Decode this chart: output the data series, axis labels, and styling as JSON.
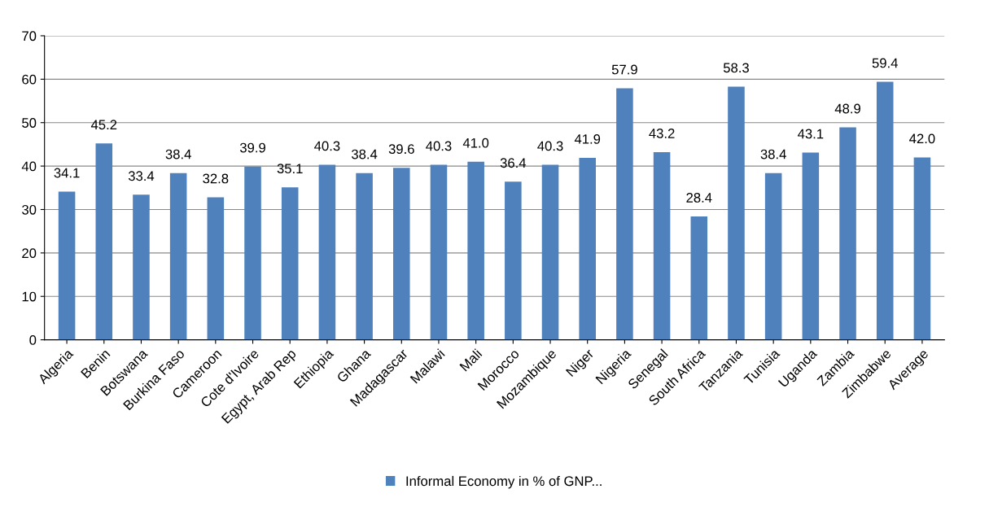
{
  "chart_data": {
    "type": "bar",
    "categories": [
      "Algeria",
      "Benin",
      "Botswana",
      "Burkina Faso",
      "Cameroon",
      "Cote d'Ivoire",
      "Egypt, Arab Rep",
      "Ethiopia",
      "Ghana",
      "Madagascar",
      "Malawi",
      "Mali",
      "Morocco",
      "Mozambique",
      "Niger",
      "Nigeria",
      "Senegal",
      "South Africa",
      "Tanzania",
      "Tunisia",
      "Uganda",
      "Zambia",
      "Zimbabwe",
      "Average"
    ],
    "series": [
      {
        "name": "Informal Economy in % of GNP...",
        "color": "#4f81bd",
        "values": [
          34.1,
          45.2,
          33.4,
          38.4,
          32.8,
          39.9,
          35.1,
          40.3,
          38.4,
          39.6,
          40.3,
          41.0,
          36.4,
          40.3,
          41.9,
          57.9,
          43.2,
          28.4,
          58.3,
          38.4,
          43.1,
          48.9,
          59.4,
          42.0
        ]
      }
    ],
    "value_labels": [
      "34.1",
      "45.2",
      "33.4",
      "38.4",
      "32.8",
      "39.9",
      "35.1",
      "40.3",
      "38.4",
      "39.6",
      "40.3",
      "41.0",
      "36.4",
      "40.3",
      "41.9",
      "57.9",
      "43.2",
      "28.4",
      "58.3",
      "38.4",
      "43.1",
      "48.9",
      "59.4",
      "42.0"
    ],
    "ylim": [
      0,
      70
    ],
    "yticks": [
      0,
      10,
      20,
      30,
      40,
      50,
      60,
      70
    ],
    "grid": "y",
    "legend": "bottom"
  }
}
